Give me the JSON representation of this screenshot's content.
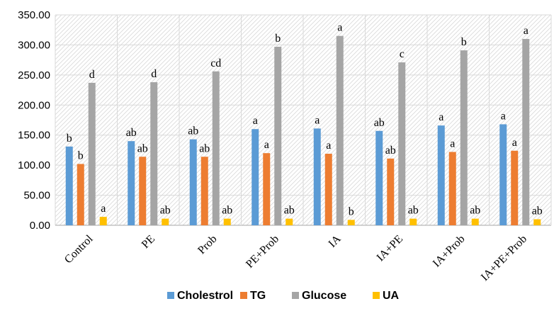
{
  "chart_data": {
    "type": "bar",
    "categories": [
      "Control",
      "PE",
      "Prob",
      "PE+Prob",
      "IA",
      "IA+PE",
      "IA+Prob",
      "IA+PE+Prob"
    ],
    "series": [
      {
        "name": "Cholestrol",
        "color": "#5B9BD5",
        "values": [
          131,
          140,
          143,
          160,
          161,
          157,
          166,
          168
        ],
        "labels": [
          "b",
          "ab",
          "ab",
          "a",
          "a",
          "ab",
          "a",
          "a"
        ]
      },
      {
        "name": "TG",
        "color": "#ED7D31",
        "values": [
          102,
          114,
          114,
          120,
          119,
          111,
          122,
          124
        ],
        "labels": [
          "b",
          "ab",
          "ab",
          "a",
          "a",
          "ab",
          "a",
          "a"
        ]
      },
      {
        "name": "Glucose",
        "color": "#A5A5A5",
        "values": [
          237,
          238,
          256,
          297,
          315,
          271,
          291,
          310
        ],
        "labels": [
          "d",
          "d",
          "cd",
          "b",
          "a",
          "c",
          "b",
          "a"
        ]
      },
      {
        "name": "UA",
        "color": "#FFC000",
        "values": [
          14,
          11,
          11,
          11,
          9,
          11,
          11,
          10
        ],
        "labels": [
          "a",
          "ab",
          "ab",
          "ab",
          "b",
          "ab",
          "ab",
          "ab"
        ]
      }
    ],
    "ylim": [
      0,
      350
    ],
    "yticks": [
      "0.00",
      "50.00",
      "100.00",
      "150.00",
      "200.00",
      "250.00",
      "300.00",
      "350.00"
    ],
    "ytick_values": [
      0,
      50,
      100,
      150,
      200,
      250,
      300,
      350
    ],
    "grid": true,
    "background_pattern": "diagonal-hatch",
    "legend_position": "bottom"
  }
}
